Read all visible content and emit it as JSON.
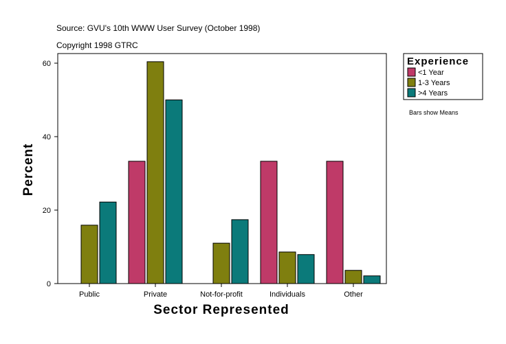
{
  "chart_data": {
    "type": "bar",
    "subtitle_lines": [
      "Source: GVU's 10th WWW User Survey (October 1998)",
      "Copyright 1998 GTRC"
    ],
    "xlabel": "Sector Represented",
    "ylabel": "Percent",
    "ylim": [
      0,
      62.5
    ],
    "yticks": [
      0,
      20,
      40,
      60
    ],
    "categories": [
      "Public",
      "Private",
      "Not-for-profit",
      "Individuals",
      "Other"
    ],
    "legend": {
      "title": "Experience",
      "placement": "right"
    },
    "note": "Bars show Means",
    "grid": false,
    "series": [
      {
        "name": "<1 Year",
        "color": "#BF3A68",
        "values": [
          0,
          33.3,
          0,
          33.3,
          33.3
        ]
      },
      {
        "name": "1-3 Years",
        "color": "#7F7F0F",
        "values": [
          15.9,
          60.4,
          11.0,
          8.6,
          3.6
        ]
      },
      {
        "name": ">4 Years",
        "color": "#0B7A7A",
        "values": [
          22.2,
          50.0,
          17.4,
          7.9,
          2.1
        ]
      }
    ]
  }
}
